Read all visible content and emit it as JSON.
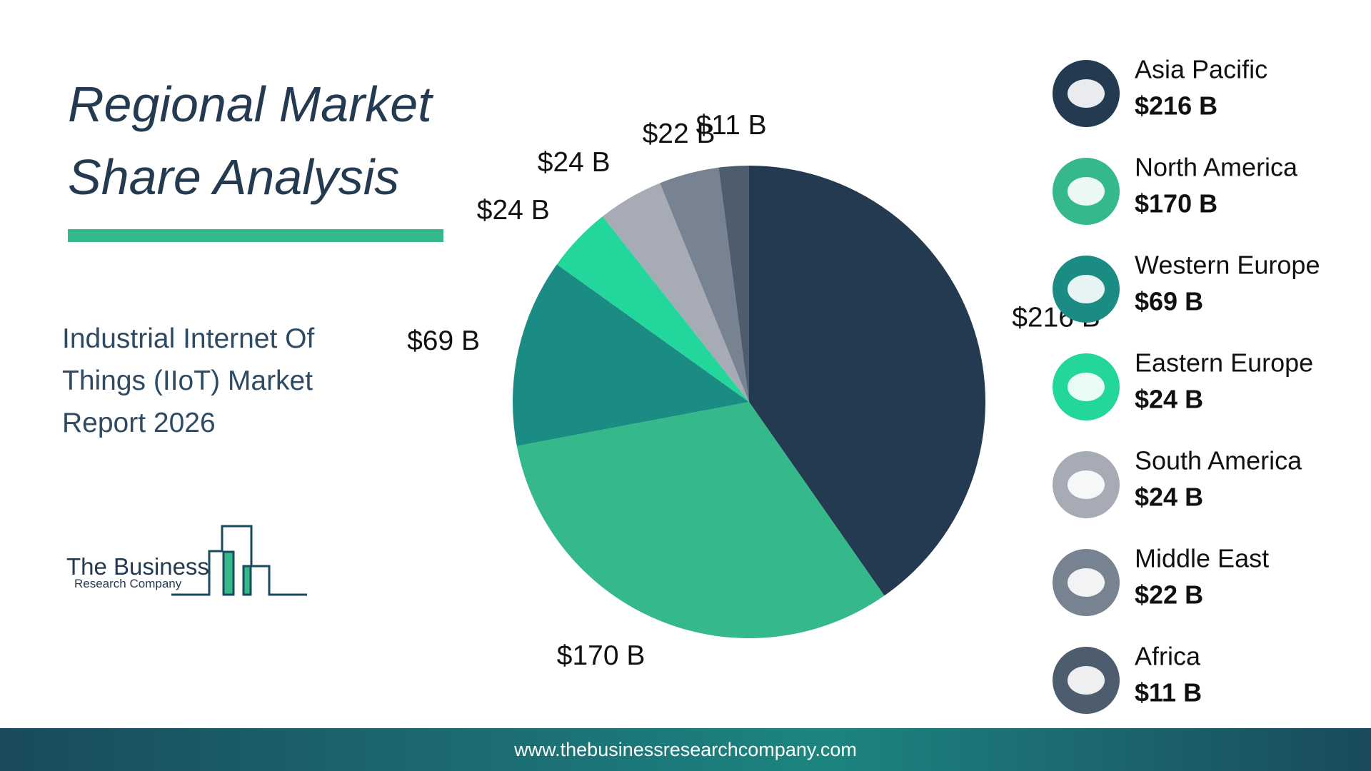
{
  "chart_data": {
    "type": "pie",
    "title": "Regional Market Share Analysis",
    "subtitle": "Industrial Internet Of Things (IIoT) Market Report 2026",
    "categories": [
      "Asia Pacific",
      "North America",
      "Western Europe",
      "Eastern Europe",
      "South America",
      "Middle East",
      "Africa"
    ],
    "values": [
      216,
      170,
      69,
      24,
      24,
      22,
      11
    ],
    "value_labels": [
      "$216 B",
      "$170 B",
      "$69 B",
      "$24 B",
      "$24 B",
      "$22 B",
      "$11 B"
    ],
    "colors": [
      "#243a50",
      "#35b88a",
      "#1b8c84",
      "#22d69c",
      "#a6abb5",
      "#788391",
      "#4e5d6e"
    ],
    "legend": "right"
  },
  "logo": {
    "line1": "The Business",
    "line2": "Research Company"
  },
  "footer": "www.thebusinessresearchcompany.com"
}
